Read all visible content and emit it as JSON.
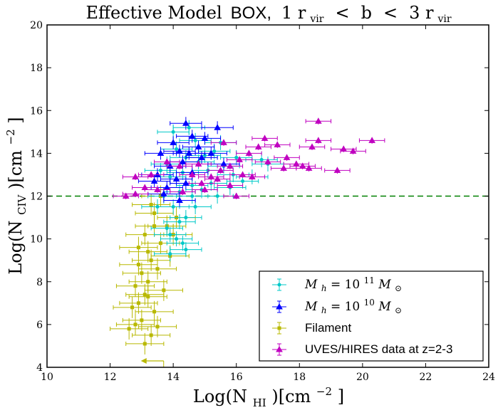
{
  "chart_data": {
    "type": "scatter",
    "title": {
      "effective_model": "Effective Model",
      "box": "BOX,",
      "range_text": "1 r",
      "vir1": "vir",
      "lt1": "<",
      "b": "b",
      "lt2": "<",
      "three": "3 r",
      "vir2": "vir"
    },
    "xlabel": {
      "main": "Log(N",
      "sub": "HI",
      "unit": ")[cm",
      "sup": "−2",
      "close": "]"
    },
    "ylabel": {
      "main": "Log(N",
      "sub": "CIV",
      "unit": ")[cm",
      "sup": "−2",
      "close": "]"
    },
    "xlim": [
      10,
      24
    ],
    "ylim": [
      4,
      20
    ],
    "xticks": [
      "10",
      "12",
      "14",
      "16",
      "18",
      "20",
      "22",
      "24"
    ],
    "yticks": [
      "4",
      "6",
      "8",
      "10",
      "12",
      "14",
      "16",
      "18",
      "20"
    ],
    "reference_line_y": 12,
    "legend_placement": "lower-right",
    "series": [
      {
        "name": "M_h = 10^11 M_sun",
        "legend": {
          "pre": "M",
          "sub": "h",
          "eq": " = 10",
          "sup": "11",
          "post": " M",
          "sub2": "⊙"
        },
        "color": "#00c8c8",
        "marker": "circle",
        "points": [
          [
            13.8,
            13.5
          ],
          [
            14.1,
            14.2
          ],
          [
            14.4,
            13.8
          ],
          [
            14.7,
            14.6
          ],
          [
            13.9,
            12.9
          ],
          [
            14.3,
            13.1
          ],
          [
            14.8,
            13.6
          ],
          [
            15.0,
            13.9
          ],
          [
            15.3,
            14.1
          ],
          [
            15.6,
            13.4
          ],
          [
            15.9,
            13.0
          ],
          [
            16.2,
            12.7
          ],
          [
            14.2,
            12.2
          ],
          [
            14.6,
            12.5
          ],
          [
            13.7,
            12.0
          ],
          [
            14.0,
            11.5
          ],
          [
            14.4,
            11.0
          ],
          [
            13.8,
            10.5
          ],
          [
            14.1,
            10.0
          ],
          [
            13.9,
            9.3
          ],
          [
            14.3,
            9.8
          ],
          [
            14.6,
            12.0
          ],
          [
            15.2,
            12.6
          ],
          [
            15.8,
            12.4
          ],
          [
            16.5,
            12.9
          ],
          [
            17.0,
            13.5
          ],
          [
            16.8,
            13.7
          ],
          [
            15.5,
            14.5
          ],
          [
            14.0,
            15.0
          ],
          [
            14.5,
            15.2
          ],
          [
            13.6,
            13.2
          ],
          [
            14.9,
            12.3
          ],
          [
            15.1,
            13.2
          ],
          [
            16.0,
            13.8
          ],
          [
            13.5,
            11.5
          ],
          [
            14.2,
            10.8
          ],
          [
            13.9,
            10.2
          ],
          [
            14.4,
            9.5
          ],
          [
            14.7,
            11.5
          ],
          [
            15.4,
            12.0
          ]
        ],
        "xerr": 0.5,
        "yerr": 0.35
      },
      {
        "name": "M_h = 10^10 M_sun",
        "legend": {
          "pre": "M",
          "sub": "h",
          "eq": " = 10",
          "sup": "10",
          "post": " M",
          "sub2": "⊙"
        },
        "color": "#0000ff",
        "marker": "triangle",
        "points": [
          [
            14.4,
            15.4
          ],
          [
            15.4,
            15.2
          ],
          [
            14.0,
            14.5
          ],
          [
            14.6,
            14.8
          ],
          [
            14.2,
            14.1
          ],
          [
            14.8,
            14.3
          ],
          [
            13.6,
            14.0
          ],
          [
            13.9,
            13.4
          ],
          [
            14.3,
            13.6
          ],
          [
            14.9,
            13.8
          ],
          [
            15.2,
            14.0
          ],
          [
            13.5,
            13.0
          ],
          [
            14.1,
            12.8
          ],
          [
            14.6,
            13.1
          ],
          [
            13.8,
            12.4
          ],
          [
            14.4,
            12.6
          ],
          [
            13.7,
            12.1
          ],
          [
            14.2,
            11.8
          ],
          [
            15.0,
            14.7
          ],
          [
            14.5,
            14.0
          ],
          [
            13.4,
            12.7
          ],
          [
            15.6,
            13.5
          ]
        ],
        "xerr": 0.5,
        "yerr": 0.3
      },
      {
        "name": "Filament",
        "legend": {
          "text": "Filament"
        },
        "color": "#b8b800",
        "marker": "square",
        "points": [
          [
            13.4,
            11.2
          ],
          [
            13.1,
            10.2
          ],
          [
            12.9,
            9.6
          ],
          [
            13.3,
            9.0
          ],
          [
            13.0,
            8.4
          ],
          [
            12.8,
            7.8
          ],
          [
            13.2,
            7.3
          ],
          [
            12.7,
            6.8
          ],
          [
            13.0,
            6.2
          ],
          [
            12.6,
            5.8
          ],
          [
            13.3,
            5.5
          ],
          [
            13.1,
            5.1
          ],
          [
            13.6,
            9.8
          ],
          [
            13.8,
            10.6
          ],
          [
            13.5,
            8.6
          ],
          [
            13.2,
            8.0
          ],
          [
            12.9,
            7.0
          ],
          [
            13.4,
            6.6
          ],
          [
            13.7,
            7.6
          ],
          [
            13.9,
            9.2
          ],
          [
            14.0,
            10.2
          ],
          [
            13.3,
            11.6
          ],
          [
            13.6,
            12.0
          ],
          [
            12.8,
            6.0
          ],
          [
            13.1,
            7.4
          ],
          [
            13.5,
            5.9
          ],
          [
            12.9,
            8.8
          ],
          [
            13.4,
            10.6
          ],
          [
            14.1,
            11.0
          ],
          [
            13.2,
            9.4
          ]
        ],
        "xerr": 0.6,
        "yerr": 0.5,
        "upper_limit_point": [
          13.2,
          4.3
        ]
      },
      {
        "name": "UVES/HIRES data at z=2-3",
        "legend": {
          "text": "UVES/HIRES data at z=2-3"
        },
        "color": "#c000c0",
        "marker": "triangle",
        "points": [
          [
            12.5,
            12.0
          ],
          [
            12.8,
            12.1
          ],
          [
            12.8,
            12.9
          ],
          [
            13.1,
            12.4
          ],
          [
            13.3,
            13.0
          ],
          [
            13.5,
            12.3
          ],
          [
            13.8,
            13.6
          ],
          [
            14.2,
            13.4
          ],
          [
            14.6,
            13.0
          ],
          [
            14.9,
            12.6
          ],
          [
            15.2,
            12.9
          ],
          [
            15.5,
            13.2
          ],
          [
            15.8,
            13.4
          ],
          [
            16.1,
            13.7
          ],
          [
            16.4,
            14.0
          ],
          [
            16.7,
            14.3
          ],
          [
            16.9,
            14.7
          ],
          [
            17.3,
            14.4
          ],
          [
            17.6,
            13.8
          ],
          [
            17.9,
            13.5
          ],
          [
            18.1,
            13.4
          ],
          [
            18.4,
            14.3
          ],
          [
            18.6,
            14.6
          ],
          [
            18.6,
            15.5
          ],
          [
            19.2,
            13.2
          ],
          [
            19.4,
            14.2
          ],
          [
            19.7,
            14.1
          ],
          [
            20.3,
            14.6
          ],
          [
            18.3,
            13.3
          ],
          [
            17.5,
            13.3
          ],
          [
            16.0,
            12.0
          ],
          [
            15.0,
            12.3
          ],
          [
            15.4,
            12.8
          ],
          [
            15.8,
            12.5
          ],
          [
            14.3,
            12.2
          ],
          [
            14.8,
            13.5
          ],
          [
            16.2,
            13.0
          ],
          [
            17.0,
            13.6
          ],
          [
            15.6,
            14.5
          ],
          [
            16.5,
            12.9
          ]
        ],
        "xerr": 0.4,
        "yerr": 0.15
      }
    ]
  }
}
